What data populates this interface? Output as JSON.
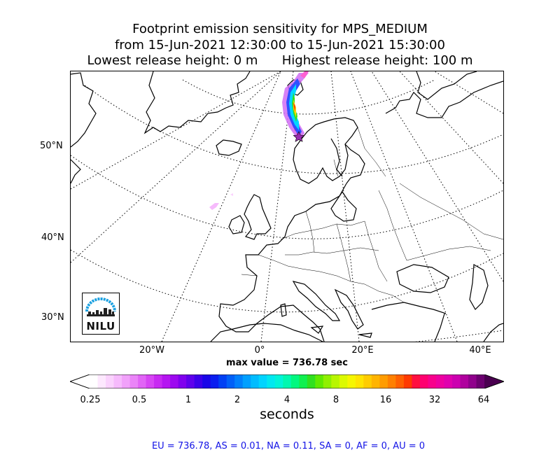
{
  "title": {
    "line1": "Footprint emission sensitivity for MPS_MEDIUM",
    "line2": "from 15-Jun-2021 12:30:00 to 15-Jun-2021 15:30:00",
    "line3": "Lowest release height: 0 m      Highest release height: 100 m"
  },
  "map": {
    "lat_labels": [
      "50°N",
      "40°N",
      "30°N"
    ],
    "lon_labels": [
      "20°W",
      "0°",
      "20°E",
      "40°E"
    ],
    "logo_text": "NILU",
    "logo_color": "#1aa0e0",
    "release_marker": "star-icon"
  },
  "max_value_text": "max value = 736.78 sec",
  "colorbar": {
    "tick_labels": [
      "0.25",
      "0.5",
      "1",
      "2",
      "4",
      "8",
      "16",
      "32",
      "64"
    ],
    "unit_label": "seconds",
    "colors": [
      "#ffffff",
      "#fde8fe",
      "#fad2fd",
      "#f6bafc",
      "#f1a1fa",
      "#ea84f8",
      "#e164f6",
      "#d745f4",
      "#c829f2",
      "#b515f1",
      "#9d08f0",
      "#8000ee",
      "#5f00ec",
      "#3c00ea",
      "#1a06e8",
      "#0a1ef0",
      "#0040f4",
      "#0060f8",
      "#0080fc",
      "#00a0ff",
      "#00bcff",
      "#00d4ff",
      "#00e8f0",
      "#00f4d8",
      "#00f8b0",
      "#00f880",
      "#10f050",
      "#30e020",
      "#60ea00",
      "#90f000",
      "#b8f600",
      "#dcfa00",
      "#f6f600",
      "#ffe400",
      "#ffcc00",
      "#ffb400",
      "#ff9c00",
      "#ff8000",
      "#ff6000",
      "#ff3a00",
      "#ff1040",
      "#ff0070",
      "#f8008c",
      "#ee00a0",
      "#e000ae",
      "#cc00b0",
      "#b0009e",
      "#90008c",
      "#6c0070"
    ],
    "under_color": "#ffffff",
    "over_color": "#4a0050"
  },
  "region_summary": "EU = 736.78,  AS = 0.01,  NA = 0.11,  SA = 0,  AF = 0,  AU = 0"
}
